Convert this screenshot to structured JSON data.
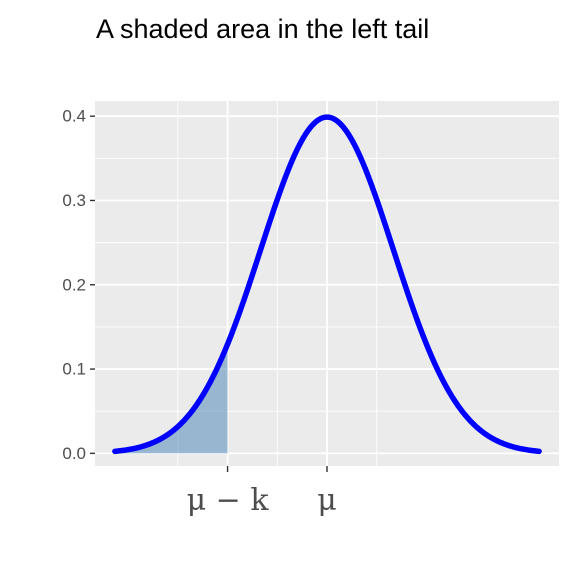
{
  "chart_data": {
    "type": "area",
    "title": "A shaded area in the left tail",
    "xlabel": "",
    "ylabel": "",
    "xlim": [
      -3.5,
      3.5
    ],
    "ylim": [
      -0.015,
      0.418
    ],
    "y_ticks": [
      0.0,
      0.1,
      0.2,
      0.3,
      0.4
    ],
    "y_tick_labels": [
      "0.0",
      "0.1",
      "0.2",
      "0.3",
      "0.4"
    ],
    "x_ticks": [
      -1.5,
      0
    ],
    "x_tick_labels": [
      "μ − k",
      "μ"
    ],
    "grid": true,
    "legend": "none",
    "series": [
      {
        "type": "line",
        "function": "normal density, mean 0, sd 1",
        "x_range": [
          -3.2,
          3.2
        ],
        "color": "#0000ff"
      },
      {
        "type": "area",
        "function": "normal density, mean 0, sd 1",
        "x_range": [
          -3.2,
          -1.5
        ],
        "color": "#4682b4"
      }
    ]
  }
}
